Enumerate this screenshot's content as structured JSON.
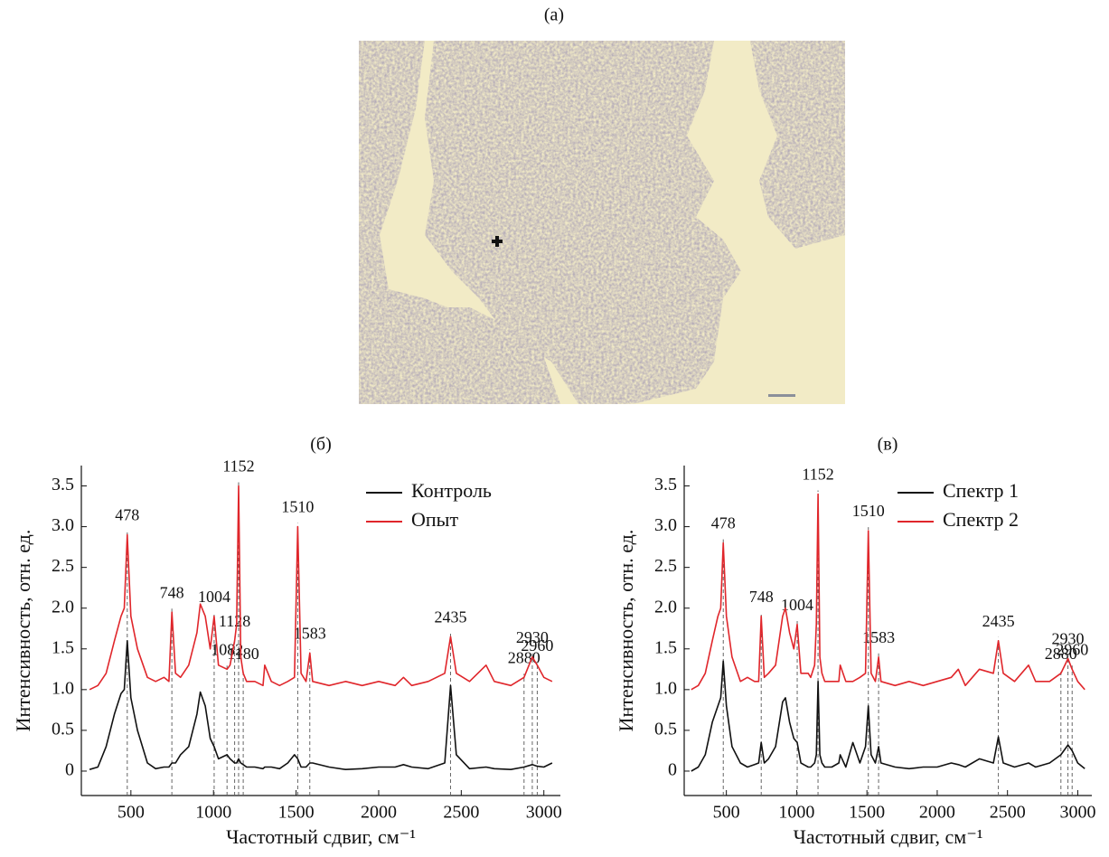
{
  "image": {
    "label": "(a)"
  },
  "chart_data": [
    {
      "type": "line",
      "title": "(б)",
      "xlabel": "Частотный сдвиг, см⁻¹",
      "ylabel": "Интенсивность, отн. ед.",
      "xlim": [
        200,
        3100
      ],
      "ylim": [
        -0.3,
        3.75
      ],
      "xticks": [
        500,
        1000,
        1500,
        2000,
        2500,
        3000
      ],
      "yticks": [
        0,
        0.5,
        {
          "value": 1,
          "label": "1.0"
        },
        1.5,
        {
          "value": 2,
          "label": "2.0"
        },
        2.5,
        {
          "value": 3,
          "label": "3.0"
        },
        3.5
      ],
      "legend": "upper right",
      "x": [
        250,
        300,
        350,
        400,
        440,
        460,
        478,
        500,
        540,
        600,
        650,
        700,
        730,
        748,
        770,
        800,
        850,
        900,
        920,
        950,
        980,
        1004,
        1030,
        1082,
        1100,
        1128,
        1140,
        1152,
        1165,
        1180,
        1200,
        1250,
        1300,
        1310,
        1350,
        1400,
        1450,
        1490,
        1510,
        1530,
        1560,
        1583,
        1600,
        1700,
        1800,
        1900,
        2000,
        2100,
        2150,
        2200,
        2300,
        2400,
        2435,
        2470,
        2550,
        2650,
        2700,
        2800,
        2880,
        2930,
        2960,
        3000,
        3050
      ],
      "series": [
        {
          "name": "Контроль",
          "color": "#111111",
          "values": [
            0.02,
            0.05,
            0.3,
            0.7,
            0.95,
            1.0,
            1.6,
            0.9,
            0.5,
            0.1,
            0.03,
            0.05,
            0.05,
            0.1,
            0.1,
            0.2,
            0.3,
            0.7,
            0.97,
            0.8,
            0.4,
            0.3,
            0.15,
            0.2,
            0.15,
            0.1,
            0.1,
            0.15,
            0.1,
            0.08,
            0.05,
            0.05,
            0.03,
            0.05,
            0.05,
            0.03,
            0.1,
            0.2,
            0.15,
            0.05,
            0.05,
            0.1,
            0.1,
            0.05,
            0.02,
            0.03,
            0.05,
            0.05,
            0.08,
            0.05,
            0.03,
            0.1,
            1.05,
            0.2,
            0.03,
            0.05,
            0.03,
            0.02,
            0.05,
            0.08,
            0.06,
            0.05,
            0.1
          ]
        },
        {
          "name": "Опыт",
          "color": "#e0262b",
          "values": [
            1.0,
            1.05,
            1.2,
            1.6,
            1.9,
            2.0,
            2.9,
            1.9,
            1.5,
            1.15,
            1.1,
            1.15,
            1.1,
            1.95,
            1.2,
            1.15,
            1.3,
            1.7,
            2.05,
            1.9,
            1.5,
            1.9,
            1.3,
            1.25,
            1.3,
            1.6,
            1.8,
            3.5,
            1.4,
            1.2,
            1.1,
            1.1,
            1.05,
            1.3,
            1.1,
            1.05,
            1.1,
            1.15,
            3.0,
            1.2,
            1.1,
            1.45,
            1.1,
            1.05,
            1.1,
            1.05,
            1.1,
            1.05,
            1.15,
            1.05,
            1.1,
            1.2,
            1.65,
            1.2,
            1.1,
            1.3,
            1.1,
            1.05,
            1.15,
            1.4,
            1.3,
            1.15,
            1.1
          ]
        }
      ],
      "peaks": [
        478,
        748,
        1004,
        1082,
        1128,
        1152,
        1180,
        1510,
        1583,
        2435,
        2880,
        2930,
        2960
      ]
    },
    {
      "type": "line",
      "title": "(в)",
      "xlabel": "Частотный сдвиг, см⁻¹",
      "ylabel": "Интенсивность, отн. ед.",
      "xlim": [
        200,
        3100
      ],
      "ylim": [
        -0.3,
        3.75
      ],
      "xticks": [
        500,
        1000,
        1500,
        2000,
        2500,
        3000
      ],
      "yticks": [
        0,
        0.5,
        {
          "value": 1,
          "label": "1.0"
        },
        1.5,
        {
          "value": 2,
          "label": "2.0"
        },
        2.5,
        {
          "value": 3,
          "label": "3.0"
        },
        3.5
      ],
      "legend": "upper right",
      "x": [
        250,
        300,
        350,
        400,
        440,
        460,
        478,
        500,
        540,
        600,
        650,
        700,
        730,
        748,
        770,
        800,
        850,
        900,
        920,
        950,
        980,
        1004,
        1030,
        1082,
        1100,
        1128,
        1140,
        1152,
        1165,
        1180,
        1200,
        1250,
        1300,
        1310,
        1350,
        1400,
        1450,
        1490,
        1510,
        1530,
        1560,
        1583,
        1600,
        1700,
        1800,
        1900,
        2000,
        2100,
        2150,
        2200,
        2300,
        2400,
        2435,
        2470,
        2550,
        2650,
        2700,
        2800,
        2880,
        2930,
        2960,
        3000,
        3050
      ],
      "series": [
        {
          "name": "Спектр 1",
          "color": "#111111",
          "values": [
            0.0,
            0.05,
            0.2,
            0.6,
            0.8,
            0.9,
            1.35,
            0.8,
            0.3,
            0.1,
            0.05,
            0.08,
            0.1,
            0.35,
            0.1,
            0.15,
            0.3,
            0.85,
            0.9,
            0.6,
            0.4,
            0.35,
            0.1,
            0.05,
            0.05,
            0.1,
            0.2,
            1.1,
            0.2,
            0.1,
            0.05,
            0.05,
            0.1,
            0.2,
            0.05,
            0.35,
            0.1,
            0.3,
            0.8,
            0.2,
            0.1,
            0.3,
            0.1,
            0.05,
            0.03,
            0.05,
            0.05,
            0.1,
            0.08,
            0.05,
            0.15,
            0.1,
            0.42,
            0.1,
            0.05,
            0.1,
            0.05,
            0.1,
            0.2,
            0.32,
            0.25,
            0.1,
            0.03
          ]
        },
        {
          "name": "Спектр 2",
          "color": "#e0262b",
          "values": [
            1.0,
            1.05,
            1.2,
            1.6,
            1.9,
            2.0,
            2.8,
            1.9,
            1.4,
            1.1,
            1.15,
            1.1,
            1.1,
            1.9,
            1.15,
            1.2,
            1.3,
            1.9,
            2.0,
            1.7,
            1.5,
            1.8,
            1.2,
            1.2,
            1.15,
            1.3,
            1.8,
            3.4,
            1.4,
            1.2,
            1.1,
            1.1,
            1.1,
            1.3,
            1.1,
            1.1,
            1.15,
            1.2,
            2.95,
            1.2,
            1.1,
            1.4,
            1.1,
            1.05,
            1.1,
            1.05,
            1.1,
            1.15,
            1.25,
            1.05,
            1.25,
            1.2,
            1.6,
            1.2,
            1.1,
            1.3,
            1.1,
            1.1,
            1.2,
            1.38,
            1.25,
            1.1,
            1.0
          ]
        }
      ],
      "peaks": [
        478,
        748,
        1004,
        1152,
        1510,
        1583,
        2435,
        2880,
        2930,
        2960
      ]
    }
  ]
}
